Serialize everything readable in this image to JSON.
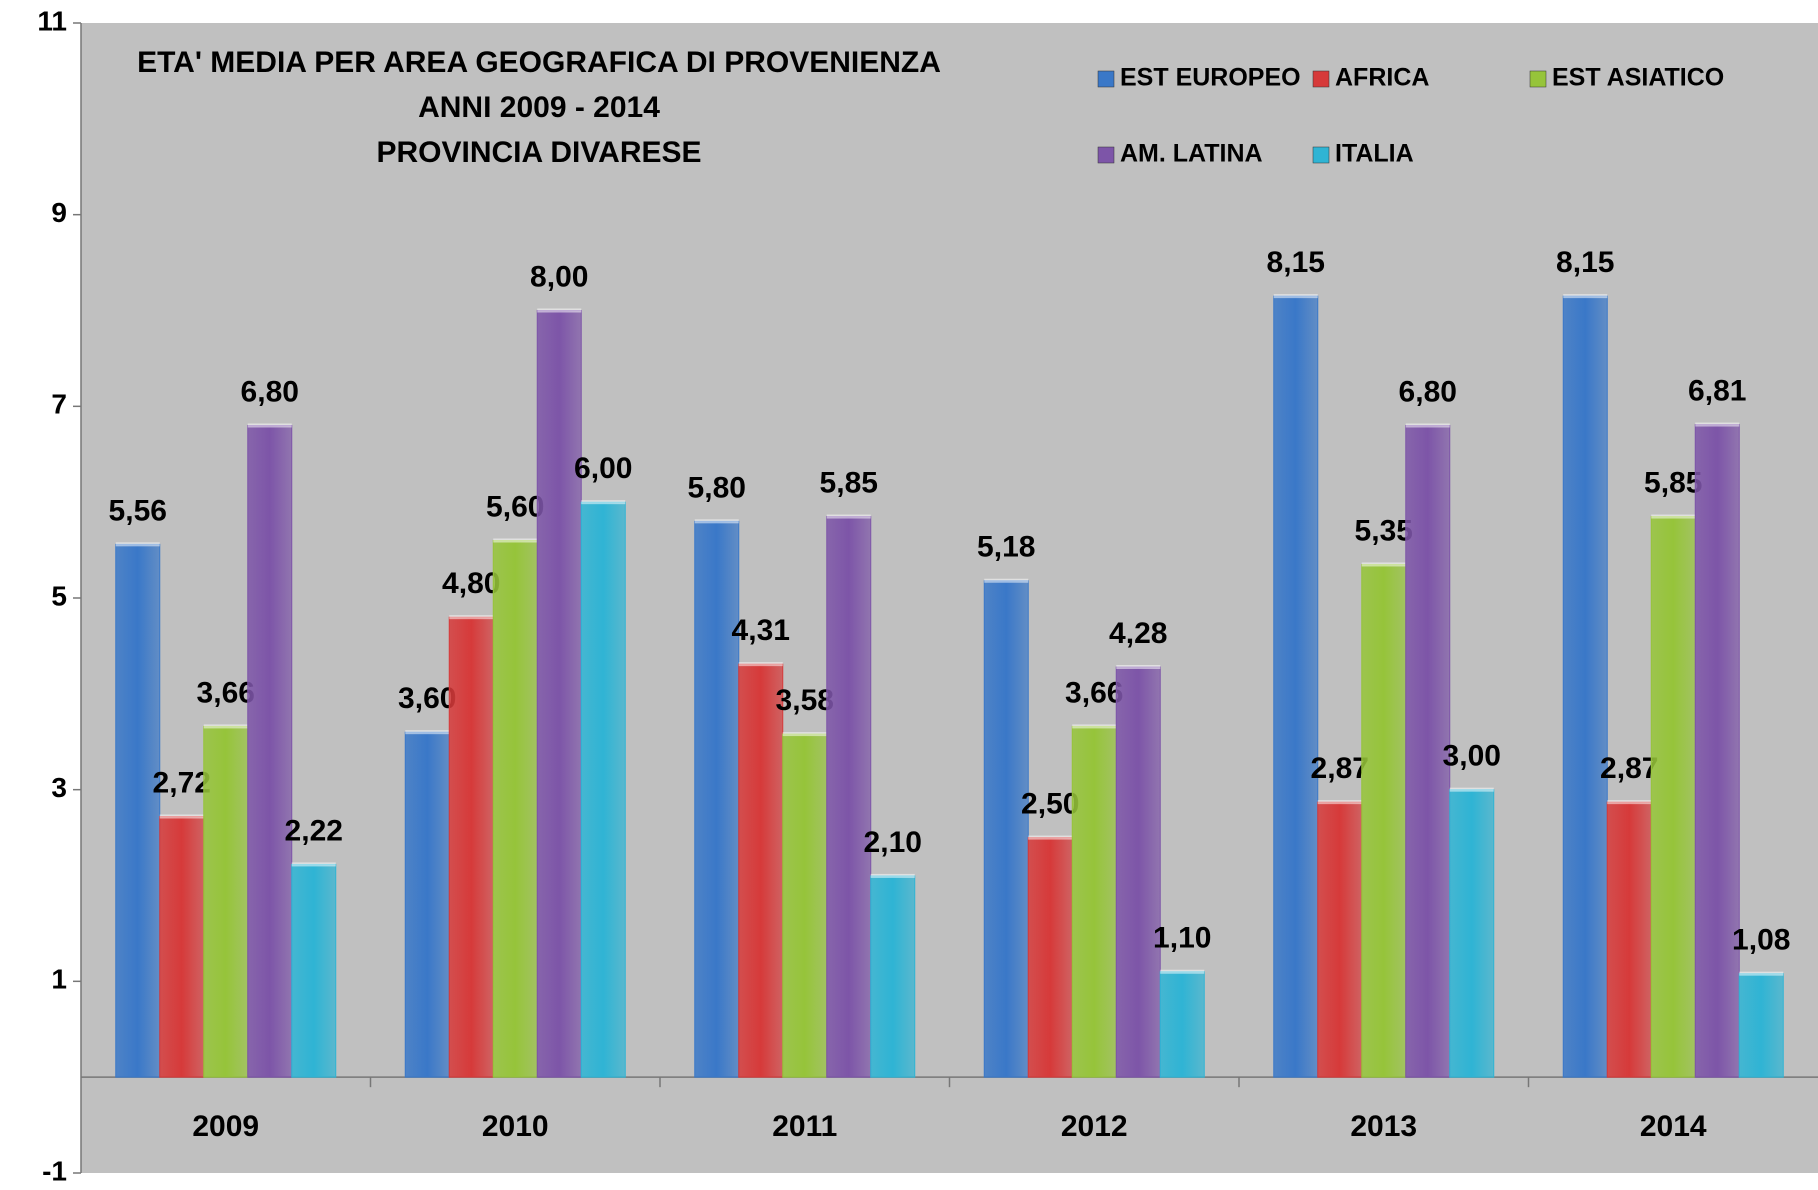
{
  "chart_data": {
    "type": "bar",
    "title": [
      "ETA' MEDIA PER AREA GEOGRAFICA DI PROVENIENZA",
      "ANNI 2009 - 2014",
      "PROVINCIA DIVARESE"
    ],
    "categories": [
      "2009",
      "2010",
      "2011",
      "2012",
      "2013",
      "2014"
    ],
    "series": [
      {
        "name": "EST EUROPEO",
        "color": "#3a78c8",
        "values": [
          5.56,
          3.6,
          5.8,
          5.18,
          8.15,
          8.15
        ],
        "value_labels": [
          "5,56",
          "3,60",
          "5,80",
          "5,18",
          "8,15",
          "8,15"
        ]
      },
      {
        "name": "AFRICA",
        "color": "#d63a3a",
        "values": [
          2.72,
          4.8,
          4.31,
          2.5,
          2.87,
          2.87
        ],
        "value_labels": [
          "2,72",
          "4,80",
          "4,31",
          "2,50",
          "2,87",
          "2,87"
        ]
      },
      {
        "name": "EST ASIATICO",
        "color": "#96c43a",
        "values": [
          3.66,
          5.6,
          3.58,
          3.66,
          5.35,
          5.85
        ],
        "value_labels": [
          "3,66",
          "5,60",
          "3,58",
          "3,66",
          "5,35",
          "5,85"
        ]
      },
      {
        "name": "AM. LATINA",
        "color": "#7d55a8",
        "values": [
          6.8,
          8.0,
          5.85,
          4.28,
          6.8,
          6.81
        ],
        "value_labels": [
          "6,80",
          "8,00",
          "5,85",
          "4,28",
          "6,80",
          "6,81"
        ]
      },
      {
        "name": "ITALIA",
        "color": "#2fb4d4",
        "values": [
          2.22,
          6.0,
          2.1,
          1.1,
          3.0,
          1.08
        ],
        "value_labels": [
          "2,22",
          "6,00",
          "2,10",
          "1,10",
          "3,00",
          "1,08"
        ]
      }
    ],
    "ylim": [
      -1,
      11
    ],
    "yticks": [
      -1,
      1,
      3,
      5,
      7,
      9,
      11
    ],
    "grid": false
  }
}
